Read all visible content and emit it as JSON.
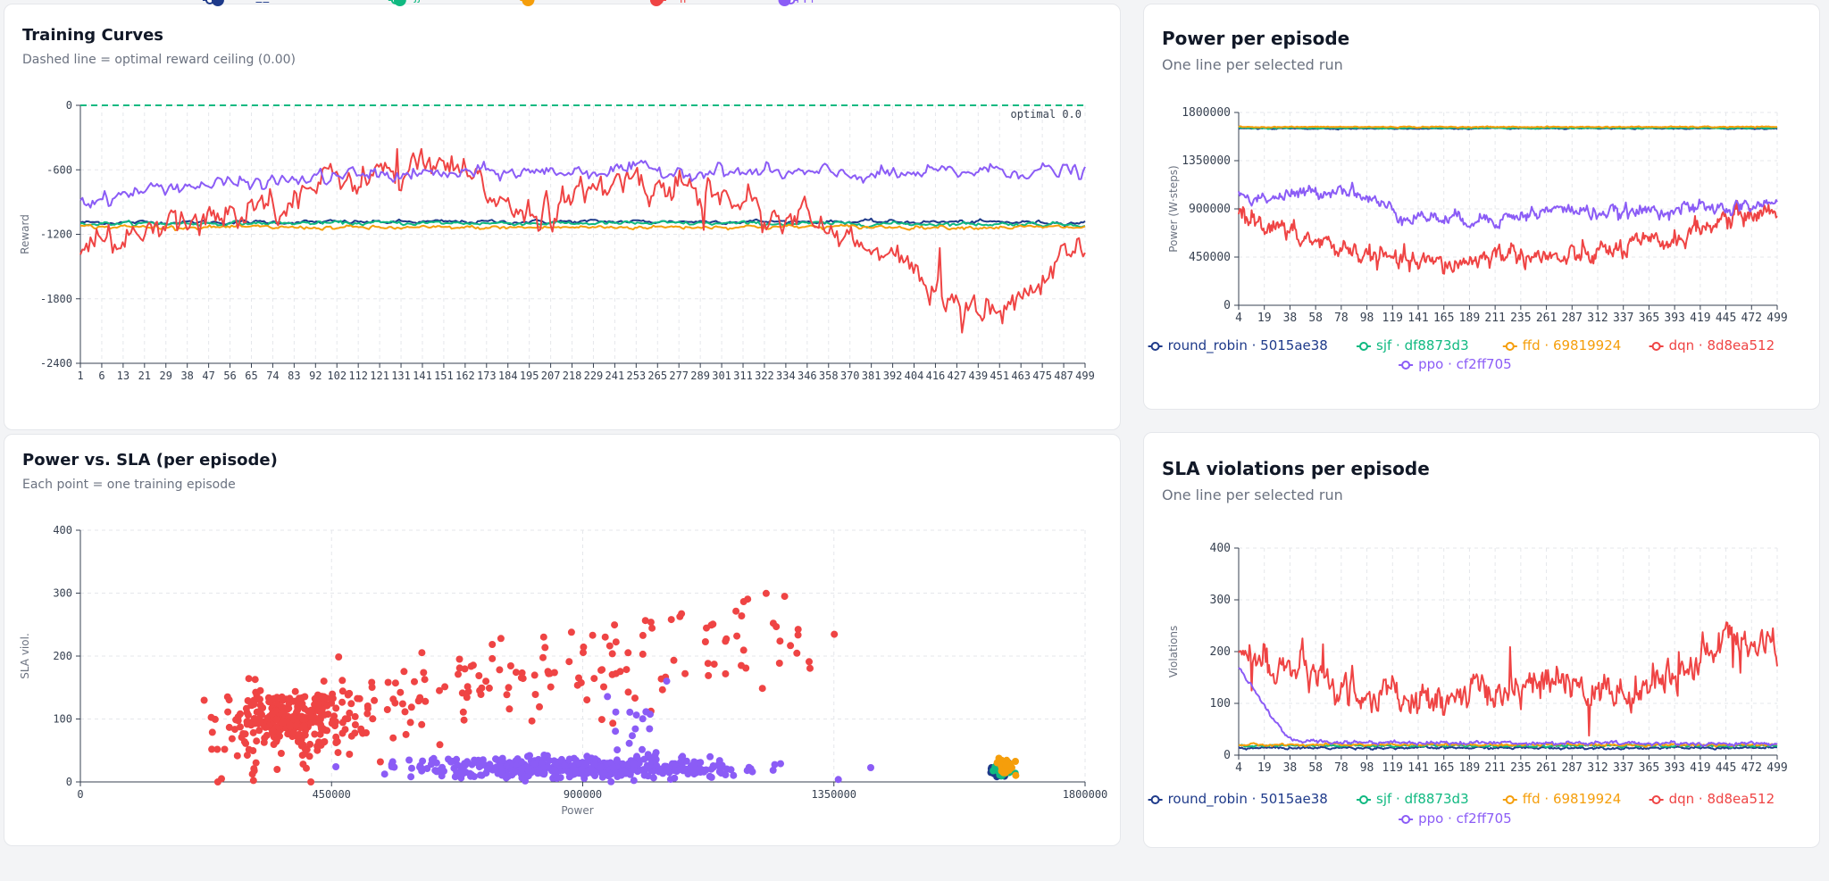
{
  "colors": {
    "round_robin": "#1e3a8a",
    "sjf": "#10b981",
    "ffd": "#f59e0b",
    "dqn": "#ef4444",
    "ppo": "#8b5cf6",
    "optimal": "#10b981"
  },
  "cards": {
    "training": {
      "title": "Training Curves",
      "subtitle": "Dashed line = optimal reward ceiling (0.00)"
    },
    "power": {
      "title": "Power per episode",
      "subtitle": "One line per selected run"
    },
    "scatter": {
      "title": "Power vs. SLA (per episode)",
      "subtitle": "Each point = one training episode"
    },
    "sla": {
      "title": "SLA violations per episode",
      "subtitle": "One line per selected run"
    }
  },
  "chart_data": [
    {
      "id": "training",
      "type": "line",
      "ylabel": "Reward",
      "ylim": [
        -2400,
        0
      ],
      "yticks": [
        "0",
        "-600",
        "-1200",
        "-1800",
        "-2400"
      ],
      "xticks": [
        "1",
        "6",
        "13",
        "21",
        "29",
        "38",
        "47",
        "56",
        "65",
        "74",
        "83",
        "92",
        "102",
        "112",
        "121",
        "131",
        "141",
        "151",
        "162",
        "173",
        "184",
        "195",
        "207",
        "218",
        "229",
        "241",
        "253",
        "265",
        "277",
        "289",
        "301",
        "311",
        "322",
        "334",
        "346",
        "358",
        "370",
        "381",
        "392",
        "404",
        "416",
        "427",
        "439",
        "451",
        "463",
        "475",
        "487",
        "499"
      ],
      "annotation": "optimal 0.0",
      "reference_line": 0,
      "series": [
        {
          "key": "round_robin",
          "name": "round_robin · 5015ae38",
          "levels": [
            -1090,
            -1085,
            -1080,
            -1090
          ]
        },
        {
          "key": "sjf",
          "name": "sjf · df8873d3",
          "levels": [
            -1100,
            -1095,
            -1100,
            -1105
          ]
        },
        {
          "key": "ffd",
          "name": "ffd · 69819924",
          "levels": [
            -1130,
            -1140,
            -1130,
            -1135
          ]
        },
        {
          "key": "dqn",
          "name": "dqn · 8d8ea512",
          "levels": [
            -1350,
            -1150,
            -900,
            -650,
            -600,
            -1000,
            -700,
            -800,
            -1100,
            -1500,
            -2000,
            -1300
          ]
        },
        {
          "key": "ppo",
          "name": "ppo · cf2ff705",
          "levels": [
            -900,
            -750,
            -720,
            -650,
            -640,
            -620,
            -600,
            -620,
            -640,
            -650,
            -600,
            -620
          ]
        }
      ]
    },
    {
      "id": "power",
      "type": "line",
      "ylabel": "Power (W·steps)",
      "ylim": [
        0,
        1800000
      ],
      "yticks": [
        "1800000",
        "1350000",
        "900000",
        "450000",
        "0"
      ],
      "xticks": [
        "4",
        "19",
        "38",
        "58",
        "78",
        "98",
        "119",
        "141",
        "165",
        "189",
        "211",
        "235",
        "261",
        "287",
        "312",
        "337",
        "365",
        "393",
        "419",
        "445",
        "472",
        "499"
      ],
      "series": [
        {
          "key": "round_robin",
          "name": "round_robin · 5015ae38",
          "levels": [
            1650000,
            1650000
          ]
        },
        {
          "key": "sjf",
          "name": "sjf · df8873d3",
          "levels": [
            1655000,
            1655000
          ]
        },
        {
          "key": "ffd",
          "name": "ffd · 69819924",
          "levels": [
            1665000,
            1665000
          ]
        },
        {
          "key": "dqn",
          "name": "dqn · 8d8ea512",
          "levels": [
            880000,
            650000,
            520000,
            400000,
            380000,
            500000,
            420000,
            520000,
            600000,
            800000,
            900000
          ]
        },
        {
          "key": "ppo",
          "name": "ppo · cf2ff705",
          "levels": [
            1000000,
            1020000,
            1100000,
            850000,
            800000,
            820000,
            900000,
            850000,
            900000,
            900000,
            950000
          ]
        }
      ]
    },
    {
      "id": "scatter",
      "type": "scatter",
      "xlabel": "Power",
      "ylabel": "SLA viol.",
      "xlim": [
        0,
        1800000
      ],
      "ylim": [
        0,
        400
      ],
      "xticks": [
        "0",
        "450000",
        "900000",
        "1350000",
        "1800000"
      ],
      "yticks": [
        "400",
        "300",
        "200",
        "100",
        "0"
      ],
      "series": [
        {
          "key": "round_robin",
          "name": "round_robin · 5015ae38",
          "center": [
            1648000,
            18
          ],
          "spread": [
            8000,
            6
          ],
          "count": 30
        },
        {
          "key": "sjf",
          "name": "sjf · df8873d3",
          "center": [
            1652000,
            22
          ],
          "spread": [
            8000,
            6
          ],
          "count": 30
        },
        {
          "key": "ffd",
          "name": "ffd · 69819924",
          "center": [
            1660000,
            24
          ],
          "spread": [
            8000,
            6
          ],
          "count": 30
        },
        {
          "key": "dqn",
          "name": "dqn · 8d8ea512",
          "center": [
            620000,
            150
          ],
          "spread": [
            320000,
            80
          ],
          "count": 450
        },
        {
          "key": "ppo",
          "name": "ppo · cf2ff705",
          "center": [
            900000,
            22
          ],
          "spread": [
            180000,
            8
          ],
          "count": 500
        }
      ]
    },
    {
      "id": "sla",
      "type": "line",
      "ylabel": "Violations",
      "ylim": [
        0,
        400
      ],
      "yticks": [
        "400",
        "300",
        "200",
        "100",
        "0"
      ],
      "xticks": [
        "4",
        "19",
        "38",
        "58",
        "78",
        "98",
        "119",
        "141",
        "165",
        "189",
        "211",
        "235",
        "261",
        "287",
        "312",
        "337",
        "365",
        "393",
        "419",
        "445",
        "472",
        "499"
      ],
      "series": [
        {
          "key": "round_robin",
          "name": "round_robin · 5015ae38",
          "levels": [
            14,
            14
          ]
        },
        {
          "key": "sjf",
          "name": "sjf · df8873d3",
          "levels": [
            18,
            18
          ]
        },
        {
          "key": "ffd",
          "name": "ffd · 69819924",
          "levels": [
            20,
            20
          ]
        },
        {
          "key": "dqn",
          "name": "dqn · 8d8ea512",
          "levels": [
            190,
            170,
            130,
            110,
            100,
            120,
            140,
            130,
            120,
            160,
            230,
            200
          ]
        },
        {
          "key": "ppo",
          "name": "ppo · cf2ff705",
          "levels": [
            170,
            30,
            25,
            25,
            24,
            24,
            24,
            23,
            23,
            23,
            22,
            22
          ]
        }
      ]
    }
  ]
}
